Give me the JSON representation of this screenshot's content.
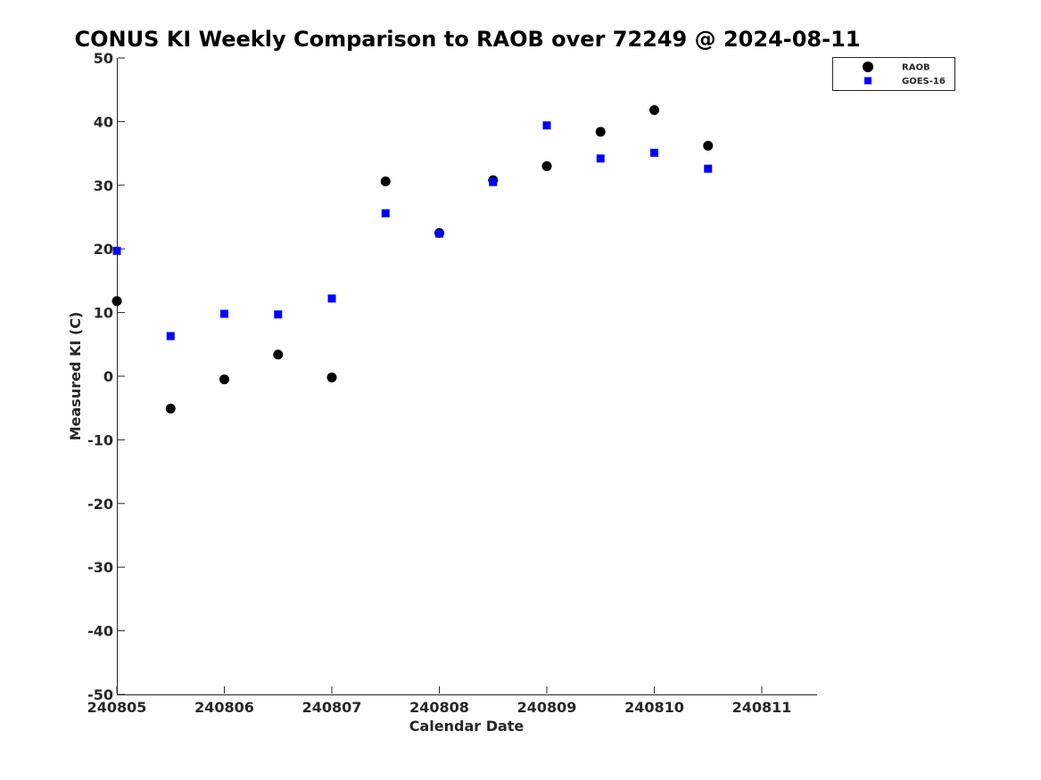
{
  "chart_data": {
    "type": "scatter",
    "title": "CONUS KI Weekly Comparison to RAOB over 72249 @ 2024-08-11",
    "xlabel": "Calendar Date",
    "ylabel": "Measured KI (C)",
    "xlim": [
      0,
      6.5
    ],
    "ylim": [
      -50,
      50
    ],
    "xticks": [
      0,
      1,
      2,
      3,
      4,
      5,
      6
    ],
    "xticklabels": [
      "240805",
      "240806",
      "240807",
      "240808",
      "240809",
      "240810",
      "240811"
    ],
    "yticks": [
      -50,
      -40,
      -30,
      -20,
      -10,
      0,
      10,
      20,
      30,
      40,
      50
    ],
    "yticklabels": [
      "-50",
      "-40",
      "-30",
      "-20",
      "-10",
      "0",
      "10",
      "20",
      "30",
      "40",
      "50"
    ],
    "grid": false,
    "legend_position": "top-right",
    "series": [
      {
        "name": "RAOB",
        "marker": "circle",
        "color": "#000000",
        "x": [
          0,
          0.5,
          1,
          1.5,
          2,
          2.5,
          3,
          3.5,
          4,
          4.5,
          5,
          5.5
        ],
        "y": [
          11.8,
          -5.1,
          -0.5,
          3.4,
          -0.2,
          30.6,
          22.5,
          30.8,
          33.0,
          38.4,
          41.8,
          36.2
        ]
      },
      {
        "name": "GOES-16",
        "marker": "square",
        "color": "#0000ff",
        "x": [
          0,
          0.5,
          1,
          1.5,
          2,
          2.5,
          3,
          3.5,
          4,
          4.5,
          5,
          5.5
        ],
        "y": [
          19.7,
          6.3,
          9.8,
          9.7,
          12.2,
          25.6,
          22.4,
          30.5,
          39.4,
          34.2,
          35.1,
          32.6
        ]
      }
    ]
  }
}
